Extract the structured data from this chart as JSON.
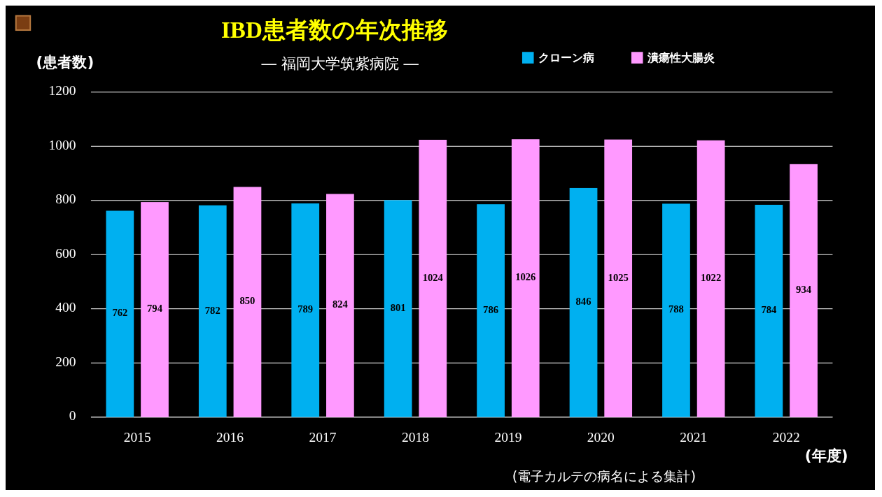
{
  "chart_data": {
    "type": "bar",
    "title": "IBD患者数の年次推移",
    "subtitle": "― 福岡大学筑紫病院 ―",
    "ylabel": "(患者数)",
    "xlabel": "(年度)",
    "annotations": [
      "(電子カルテの病名による集計)"
    ],
    "categories": [
      "2015",
      "2016",
      "2017",
      "2018",
      "2019",
      "2020",
      "2021",
      "2022"
    ],
    "series": [
      {
        "name": "クローン病",
        "color": "#00b0f0",
        "values": [
          762,
          782,
          789,
          801,
          786,
          846,
          788,
          784
        ]
      },
      {
        "name": "潰瘍性大腸炎",
        "color": "#ff99ff",
        "values": [
          794,
          850,
          824,
          1024,
          1026,
          1025,
          1022,
          934
        ]
      }
    ],
    "ylim": [
      0,
      1200
    ],
    "yticks": [
      0,
      200,
      400,
      600,
      800,
      1000,
      1200
    ],
    "grid": "y",
    "legend": "top right",
    "data_labels": true
  }
}
